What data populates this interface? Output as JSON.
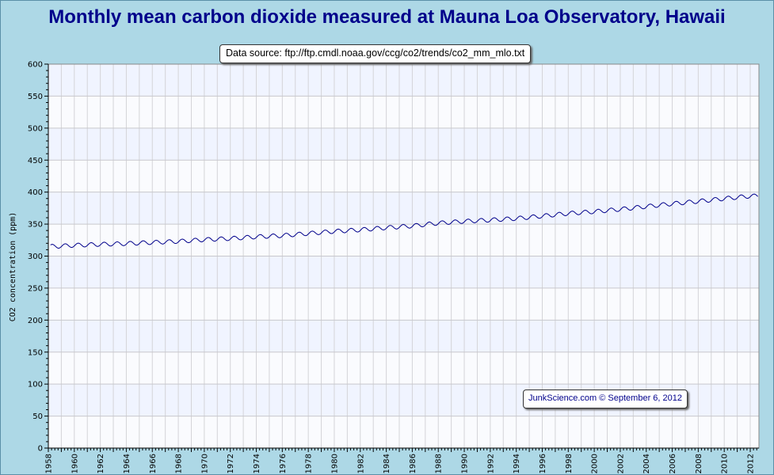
{
  "title": "Monthly mean carbon dioxide measured at Mauna Loa Observatory, Hawaii",
  "source": "Data source: ftp://ftp.cmdl.noaa.gov/ccg/co2/trends/co2_mm_mlo.txt",
  "credit": "JunkScience.com © September 6, 2012",
  "colors": {
    "background": "#add8e6",
    "band_light": "#f0f4ff",
    "band_white": "#fafbfe",
    "line": "#00008b",
    "title": "#00008b"
  },
  "chart_data": {
    "type": "line",
    "title": "Monthly mean carbon dioxide measured at Mauna Loa Observatory, Hawaii",
    "xlabel": "",
    "ylabel": "CO2 concentration (ppm)",
    "xlim": [
      1958,
      2012.67
    ],
    "ylim": [
      0,
      600
    ],
    "y_ticks": [
      "0",
      "50",
      "100",
      "150",
      "200",
      "250",
      "300",
      "350",
      "400",
      "450",
      "500",
      "550",
      "600"
    ],
    "x_ticks": [
      "1958",
      "1960",
      "1962",
      "1964",
      "1966",
      "1968",
      "1970",
      "1972",
      "1974",
      "1976",
      "1978",
      "1980",
      "1982",
      "1984",
      "1986",
      "1988",
      "1990",
      "1992",
      "1994",
      "1996",
      "1998",
      "2000",
      "2002",
      "2004",
      "2006",
      "2008",
      "2010",
      "2012"
    ],
    "grid": true,
    "series": [
      {
        "name": "",
        "x": [
          1958.5,
          1960,
          1962,
          1964,
          1966,
          1968,
          1970,
          1972,
          1974,
          1976,
          1978,
          1980,
          1982,
          1984,
          1986,
          1988,
          1990,
          1992,
          1994,
          1996,
          1998,
          2000,
          2002,
          2004,
          2006,
          2008,
          2010,
          2012
        ],
        "y": [
          315.2,
          316.9,
          318.4,
          319.6,
          321.4,
          323.0,
          325.7,
          327.5,
          330.2,
          332.1,
          335.4,
          338.7,
          341.1,
          344.4,
          347.2,
          351.6,
          354.4,
          356.4,
          358.8,
          362.6,
          366.7,
          369.5,
          373.2,
          377.5,
          381.9,
          385.6,
          389.9,
          393.8
        ],
        "seasonal_amplitude_ppm": 3.2
      }
    ]
  }
}
